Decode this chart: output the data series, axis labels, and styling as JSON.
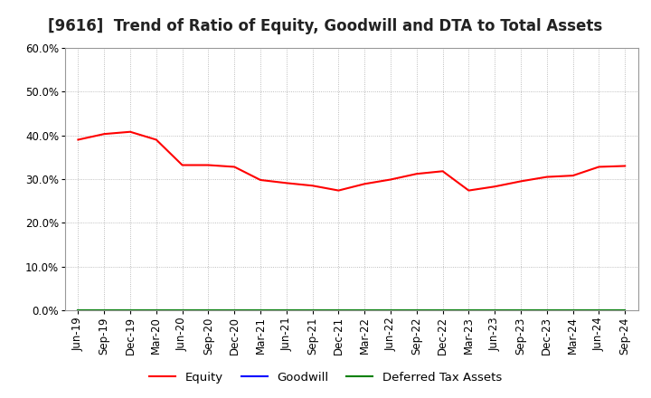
{
  "title": "[9616]  Trend of Ratio of Equity, Goodwill and DTA to Total Assets",
  "x_labels": [
    "Jun-19",
    "Sep-19",
    "Dec-19",
    "Mar-20",
    "Jun-20",
    "Sep-20",
    "Dec-20",
    "Mar-21",
    "Jun-21",
    "Sep-21",
    "Dec-21",
    "Mar-22",
    "Jun-22",
    "Sep-22",
    "Dec-22",
    "Mar-23",
    "Jun-23",
    "Sep-23",
    "Dec-23",
    "Mar-24",
    "Jun-24",
    "Sep-24"
  ],
  "equity": [
    0.39,
    0.403,
    0.408,
    0.39,
    0.332,
    0.332,
    0.328,
    0.298,
    0.291,
    0.285,
    0.274,
    0.289,
    0.299,
    0.312,
    0.318,
    0.274,
    0.283,
    0.295,
    0.305,
    0.308,
    0.328,
    0.33
  ],
  "goodwill": [
    0.0,
    0.0,
    0.0,
    0.0,
    0.0,
    0.0,
    0.0,
    0.0,
    0.0,
    0.0,
    0.0,
    0.0,
    0.0,
    0.0,
    0.0,
    0.0,
    0.0,
    0.0,
    0.0,
    0.0,
    0.0,
    0.0
  ],
  "dta": [
    0.0,
    0.0,
    0.0,
    0.0,
    0.0,
    0.0,
    0.0,
    0.0,
    0.0,
    0.0,
    0.0,
    0.0,
    0.0,
    0.0,
    0.0,
    0.0,
    0.0,
    0.0,
    0.0,
    0.0,
    0.0,
    0.0
  ],
  "equity_color": "#FF0000",
  "goodwill_color": "#0000FF",
  "dta_color": "#008000",
  "ylim": [
    0.0,
    0.6
  ],
  "yticks": [
    0.0,
    0.1,
    0.2,
    0.3,
    0.4,
    0.5,
    0.6
  ],
  "background_color": "#FFFFFF",
  "plot_bg_color": "#FFFFFF",
  "grid_color": "#AAAAAA",
  "title_fontsize": 12,
  "tick_fontsize": 8.5,
  "legend_labels": [
    "Equity",
    "Goodwill",
    "Deferred Tax Assets"
  ]
}
